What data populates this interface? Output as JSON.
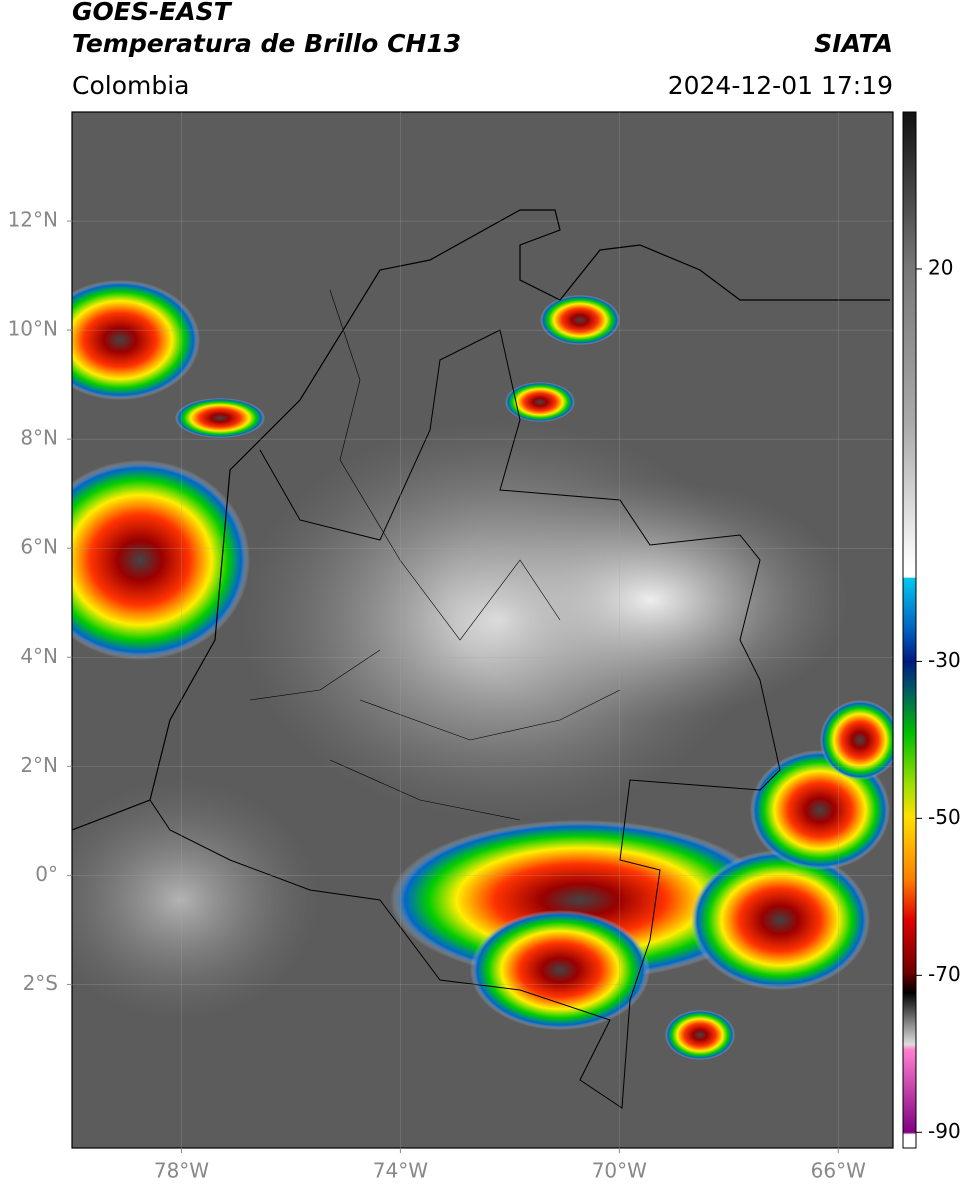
{
  "header": {
    "title": "GOES-EAST",
    "subtitle": "Temperatura de Brillo CH13",
    "source": "SIATA",
    "region": "Colombia",
    "timestamp": "2024-12-01 17:19"
  },
  "map": {
    "xlim": [
      -80,
      -65
    ],
    "ylim": [
      -5,
      14
    ],
    "grid": true,
    "xticks": [
      {
        "value": -78,
        "label": "78°W"
      },
      {
        "value": -74,
        "label": "74°W"
      },
      {
        "value": -70,
        "label": "70°W"
      },
      {
        "value": -66,
        "label": "66°W"
      }
    ],
    "yticks": [
      {
        "value": 12,
        "label": "12°N"
      },
      {
        "value": 10,
        "label": "10°N"
      },
      {
        "value": 8,
        "label": "8°N"
      },
      {
        "value": 6,
        "label": "6°N"
      },
      {
        "value": 4,
        "label": "4°N"
      },
      {
        "value": 2,
        "label": "2°N"
      },
      {
        "value": 0,
        "label": "0°"
      },
      {
        "value": -2,
        "label": "2°S"
      }
    ]
  },
  "colorbar": {
    "lim": [
      -92,
      40
    ],
    "ticks": [
      20,
      -30,
      -50,
      -70,
      -90
    ]
  }
}
